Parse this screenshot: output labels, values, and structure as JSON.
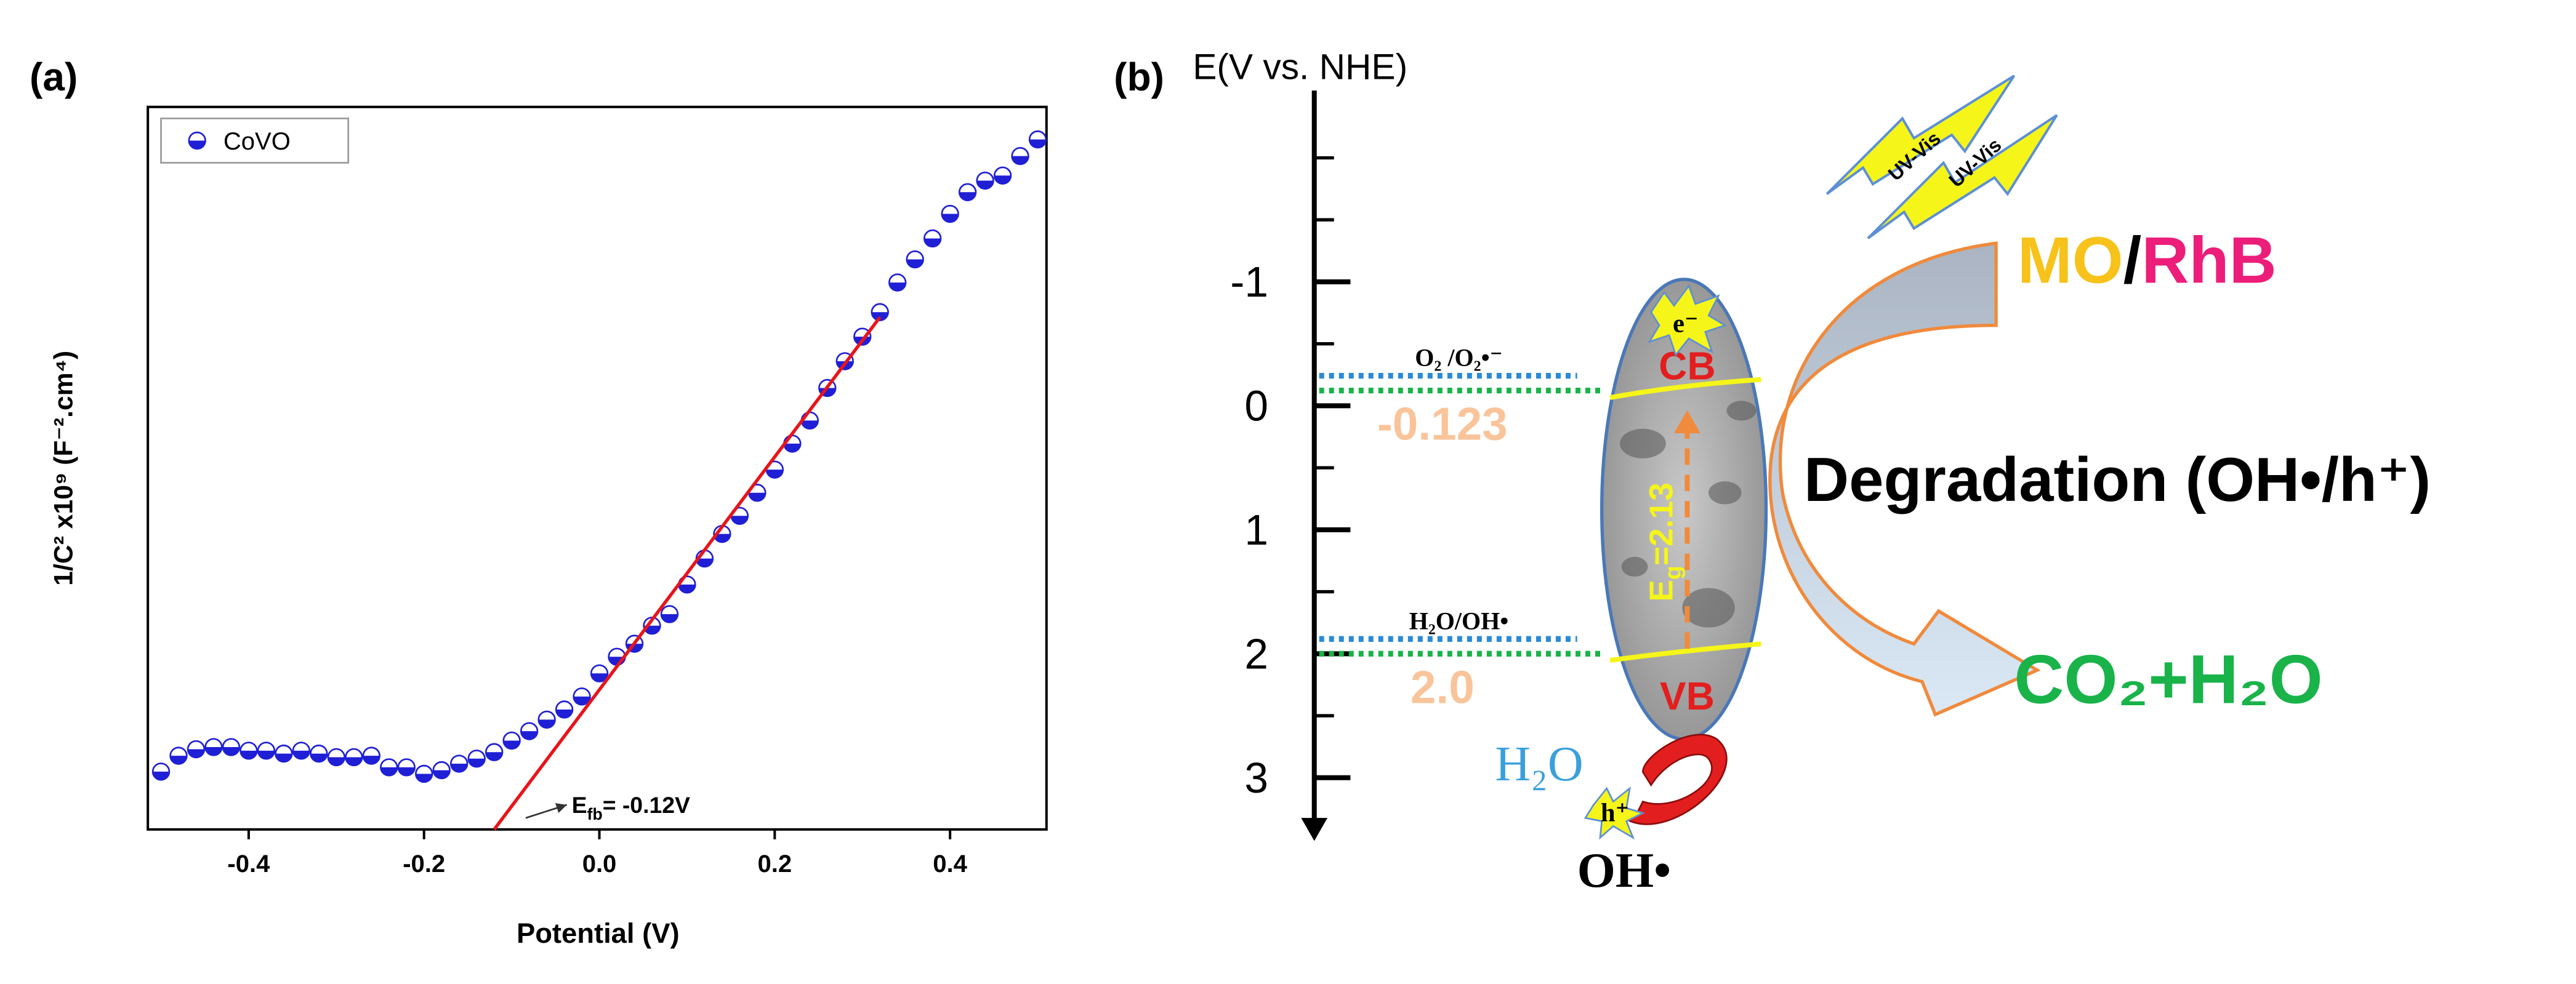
{
  "chart_data": {
    "type": "scatter",
    "panel_label": "(a)",
    "x_label": "Potential (V)",
    "y_label": "1/C² x10⁹ (F⁻².cm⁴)",
    "series": [
      {
        "name": "CoVO",
        "color": "#1f1fd6",
        "x": [
          -0.5,
          -0.48,
          -0.46,
          -0.44,
          -0.42,
          -0.4,
          -0.38,
          -0.36,
          -0.34,
          -0.32,
          -0.3,
          -0.28,
          -0.26,
          -0.24,
          -0.22,
          -0.2,
          -0.18,
          -0.16,
          -0.14,
          -0.12,
          -0.1,
          -0.08,
          -0.06,
          -0.04,
          -0.02,
          0,
          0.02,
          0.04,
          0.06,
          0.08,
          0.1,
          0.12,
          0.14,
          0.16,
          0.18,
          0.2,
          0.22,
          0.24,
          0.26,
          0.28,
          0.3,
          0.32,
          0.34,
          0.36,
          0.38,
          0.4,
          0.42,
          0.44,
          0.46,
          0.48,
          0.5
        ],
        "values": [
          8.0,
          10.2,
          11.1,
          11.4,
          11.4,
          10.9,
          10.9,
          10.5,
          10.9,
          10.5,
          10.0,
          10.0,
          10.2,
          8.6,
          8.6,
          7.7,
          8.2,
          9.1,
          9.8,
          10.7,
          12.3,
          13.6,
          15.2,
          16.6,
          18.4,
          21.6,
          23.9,
          25.7,
          28.2,
          29.8,
          33.9,
          37.5,
          40.9,
          43.4,
          46.6,
          49.8,
          53.4,
          56.6,
          61.1,
          64.8,
          68.2,
          71.6,
          75.7,
          78.9,
          81.8,
          85.2,
          88.2,
          89.8,
          90.5,
          93.2,
          95.5
        ]
      }
    ],
    "fit_line": {
      "color": "#e8141a",
      "x": [
        -0.12,
        0.32
      ],
      "values": [
        0,
        70.9
      ]
    },
    "annotation": {
      "symbol": "E",
      "subscript": "fb",
      "text": "= -0.12V"
    },
    "xlim": [
      -0.515,
      0.51
    ],
    "ylim": [
      0,
      100
    ],
    "xticks": [
      -0.4,
      -0.2,
      {
        "value": 0,
        "label": "0.0"
      },
      0.2,
      0.4
    ],
    "legend": "upper left"
  },
  "diagram": {
    "panel_label": "(b)",
    "axis_label": "E(V vs. NHE)",
    "energy_ticks": [
      -1,
      0,
      1,
      2,
      3
    ],
    "levels": [
      {
        "couple": "O₂ /O₂•⁻",
        "potential": -0.123
      },
      {
        "couple": "H₂O/OH•",
        "potential": {
          "value": 2,
          "label": "2.0"
        }
      }
    ],
    "band_gap": {
      "symbol": "E",
      "subscript": "g",
      "value": 2.13,
      "label": "=2.13"
    },
    "cb": "CB",
    "vb": "VB",
    "electron": "e⁻",
    "hole": "h⁺",
    "light": [
      "UV-Vis",
      "UV-Vis"
    ],
    "dyes": [
      "MO",
      "/",
      "RhB"
    ],
    "process": "Degradation (OH•/h⁺)",
    "products": "CO₂+H₂O",
    "reactant": "H₂O",
    "radical": "OH•"
  }
}
